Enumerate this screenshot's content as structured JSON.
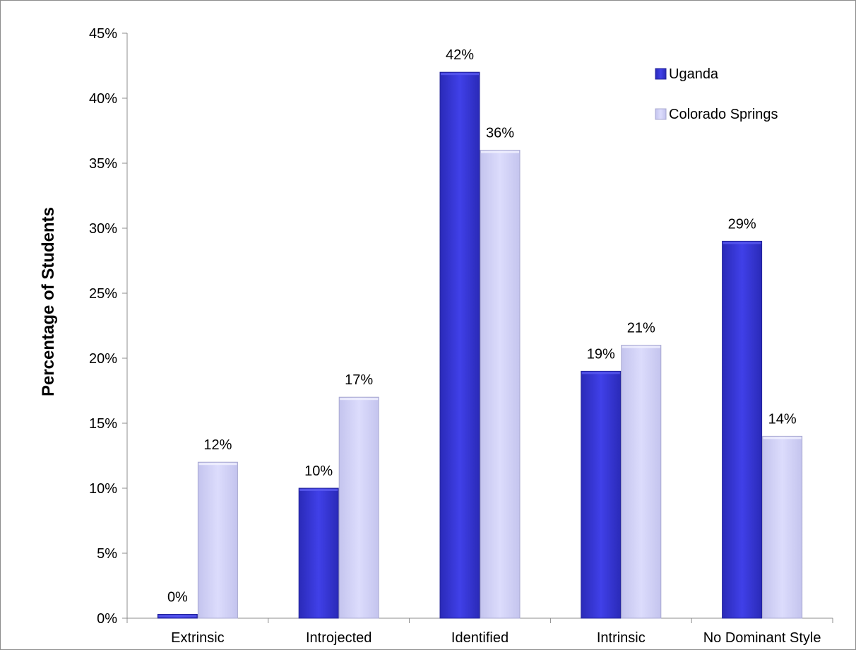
{
  "chart_data": {
    "type": "bar",
    "title": "",
    "xlabel": "",
    "ylabel": "Percentage of Students",
    "categories": [
      "Extrinsic",
      "Introjected",
      "Identified",
      "Intrinsic",
      "No Dominant Style"
    ],
    "series": [
      {
        "name": "Uganda",
        "values": [
          0.3,
          10,
          42,
          19,
          29
        ],
        "labels": [
          "0%",
          "10%",
          "42%",
          "19%",
          "29%"
        ],
        "color": "#3a3adc"
      },
      {
        "name": "Colorado Springs",
        "values": [
          12,
          17,
          36,
          21,
          14
        ],
        "labels": [
          "12%",
          "17%",
          "36%",
          "21%",
          "14%"
        ],
        "color": "#d4d4f8"
      }
    ],
    "ylim": [
      0,
      45
    ],
    "yticks": [
      0,
      5,
      10,
      15,
      20,
      25,
      30,
      35,
      40,
      45
    ],
    "ytick_labels": [
      "0%",
      "5%",
      "10%",
      "15%",
      "20%",
      "25%",
      "30%",
      "35%",
      "40%",
      "45%"
    ],
    "grid": false,
    "legend_position": "top-right"
  }
}
